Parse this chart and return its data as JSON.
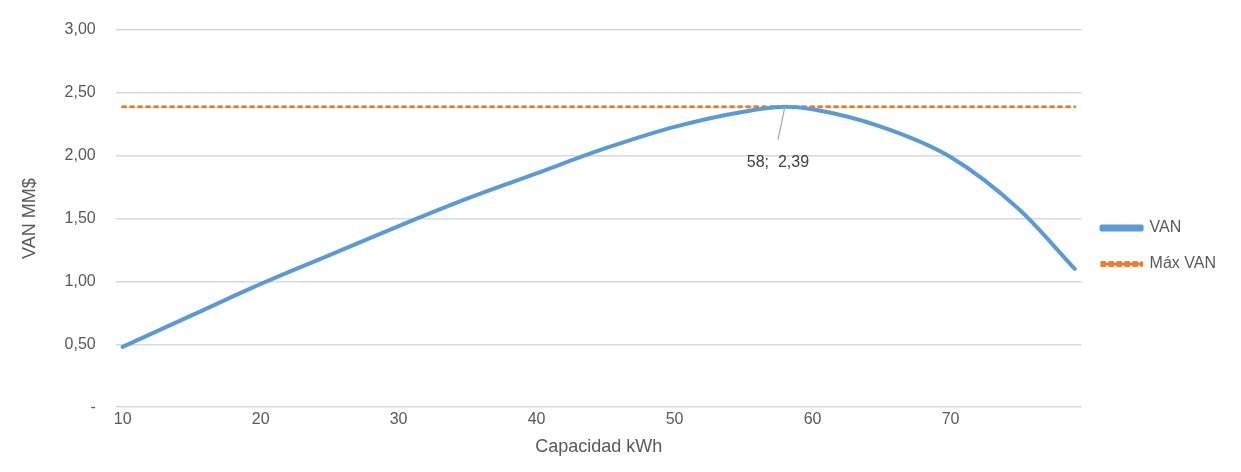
{
  "chart_data": {
    "type": "line",
    "xlabel": "Capacidad kWh",
    "ylabel": "VAN MM$",
    "x": [
      10,
      15,
      20,
      25,
      30,
      35,
      40,
      45,
      50,
      55,
      58,
      60,
      65,
      70,
      75,
      79
    ],
    "series": [
      {
        "name": "VAN",
        "color": "#5b9bd5",
        "values": [
          0.48,
          0.73,
          0.98,
          1.21,
          1.44,
          1.66,
          1.86,
          2.06,
          2.23,
          2.35,
          2.39,
          2.37,
          2.23,
          1.99,
          1.57,
          1.1
        ]
      },
      {
        "name": "Máx VAN",
        "color": "#ed7d31",
        "x": [
          10,
          79
        ],
        "values": [
          2.39,
          2.39
        ],
        "line_style": "dotted"
      }
    ],
    "xlim": [
      9.5,
      79.5
    ],
    "xticks": [
      10,
      20,
      30,
      40,
      50,
      60,
      70
    ],
    "ylim": [
      0,
      3
    ],
    "yticks": [
      {
        "value": 0,
        "label": "-"
      },
      {
        "value": 0.5,
        "label": "0,50"
      },
      {
        "value": 1,
        "label": "1,00"
      },
      {
        "value": 1.5,
        "label": "1,50"
      },
      {
        "value": 2,
        "label": "2,00"
      },
      {
        "value": 2.5,
        "label": "2,50"
      },
      {
        "value": 3,
        "label": "3,00"
      }
    ],
    "annotations": [
      {
        "text": "58;  2,39",
        "x": 58,
        "y": 2.39
      }
    ],
    "grid": "y",
    "legend": "right",
    "marker": "none",
    "line_style": "solid"
  }
}
